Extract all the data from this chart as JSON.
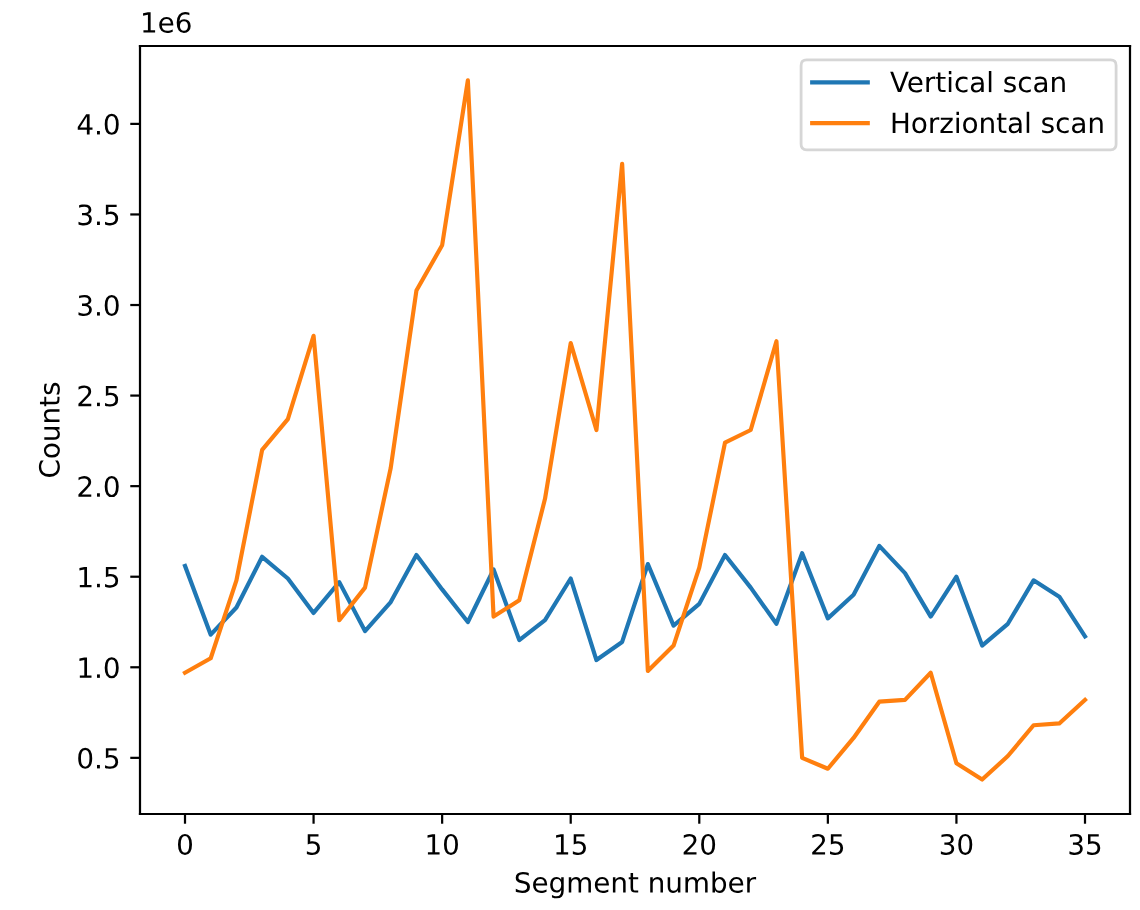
{
  "chart_data": {
    "type": "line",
    "xlabel": "Segment number",
    "ylabel": "Counts",
    "annotations": [
      "1e6"
    ],
    "x": [
      0,
      1,
      2,
      3,
      4,
      5,
      6,
      7,
      8,
      9,
      10,
      11,
      12,
      13,
      14,
      15,
      16,
      17,
      18,
      19,
      20,
      21,
      22,
      23,
      24,
      25,
      26,
      27,
      28,
      29,
      30,
      31,
      32,
      33,
      34,
      35
    ],
    "series": [
      {
        "name": "Vertical scan",
        "color": "#1f77b4",
        "values": [
          1.56,
          1.18,
          1.33,
          1.61,
          1.49,
          1.3,
          1.47,
          1.2,
          1.36,
          1.62,
          1.43,
          1.25,
          1.54,
          1.15,
          1.26,
          1.49,
          1.04,
          1.14,
          1.57,
          1.23,
          1.35,
          1.62,
          1.44,
          1.24,
          1.63,
          1.27,
          1.4,
          1.67,
          1.52,
          1.28,
          1.5,
          1.12,
          1.24,
          1.48,
          1.39,
          1.17
        ]
      },
      {
        "name": "Horziontal scan",
        "color": "#ff7f0e",
        "values": [
          0.97,
          1.05,
          1.48,
          2.2,
          2.37,
          2.83,
          1.26,
          1.44,
          2.1,
          3.08,
          3.33,
          4.24,
          1.28,
          1.37,
          1.93,
          2.79,
          2.31,
          3.78,
          0.98,
          1.12,
          1.55,
          2.24,
          2.31,
          2.8,
          0.5,
          0.44,
          0.61,
          0.81,
          0.82,
          0.97,
          0.47,
          0.38,
          0.51,
          0.68,
          0.69,
          0.82
        ]
      }
    ],
    "xlim": [
      -1.75,
      36.75
    ],
    "ylim": [
      0.19,
      4.43
    ],
    "xticks": [
      0,
      5,
      10,
      15,
      20,
      25,
      30,
      35
    ],
    "yticks": [
      0.5,
      {
        "value": 1,
        "label": "1.0"
      },
      1.5,
      {
        "value": 2,
        "label": "2.0"
      },
      2.5,
      {
        "value": 3,
        "label": "3.0"
      },
      3.5,
      {
        "value": 4,
        "label": "4.0"
      }
    ],
    "grid": false,
    "legend": "top right"
  }
}
